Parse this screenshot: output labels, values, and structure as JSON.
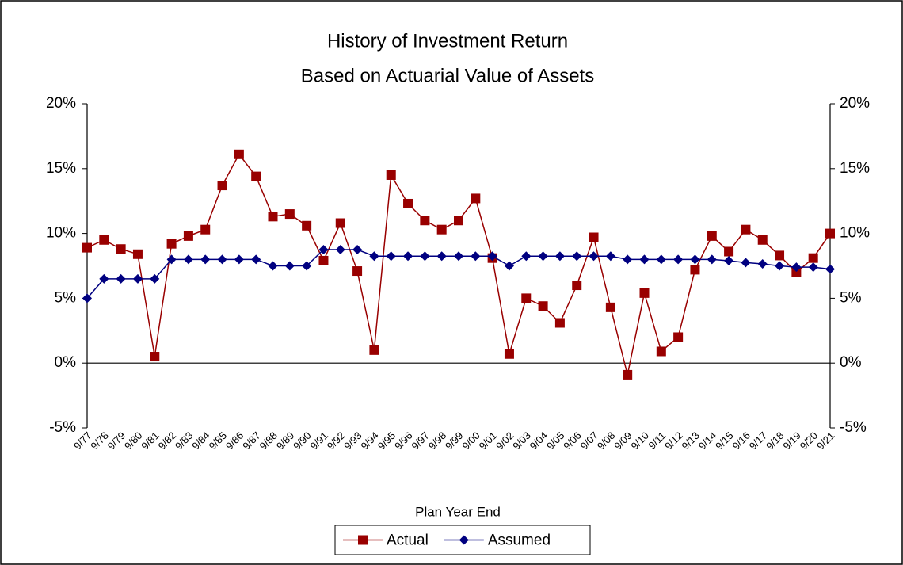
{
  "chart_data": {
    "type": "line",
    "title": "History of Investment Return",
    "subtitle": "Based on Actuarial Value of Assets",
    "x_label": "Plan Year End",
    "categories": [
      "9/77",
      "9/78",
      "9/79",
      "9/80",
      "9/81",
      "9/82",
      "9/83",
      "9/84",
      "9/85",
      "9/86",
      "9/87",
      "9/88",
      "9/89",
      "9/90",
      "9/91",
      "9/92",
      "9/93",
      "9/94",
      "9/95",
      "9/96",
      "9/97",
      "9/98",
      "9/99",
      "9/00",
      "9/01",
      "9/02",
      "9/03",
      "9/04",
      "9/05",
      "9/06",
      "9/07",
      "9/08",
      "9/09",
      "9/10",
      "9/11",
      "9/12",
      "9/13",
      "9/14",
      "9/15",
      "9/16",
      "9/17",
      "9/18",
      "9/19",
      "9/20",
      "9/21"
    ],
    "series": [
      {
        "name": "Actual",
        "color": "#990000",
        "marker": "square",
        "values": [
          8.9,
          9.5,
          8.8,
          8.4,
          0.5,
          9.2,
          9.8,
          10.3,
          13.7,
          16.1,
          14.4,
          11.3,
          11.5,
          10.6,
          7.9,
          10.8,
          7.1,
          1.0,
          14.5,
          12.3,
          11.0,
          10.3,
          11.0,
          12.7,
          8.1,
          0.7,
          5.0,
          4.4,
          3.1,
          6.0,
          9.7,
          4.3,
          -0.9,
          5.4,
          0.9,
          2.0,
          7.2,
          9.8,
          8.6,
          10.3,
          9.5,
          8.3,
          7.0,
          8.1,
          10.0
        ]
      },
      {
        "name": "Assumed",
        "color": "#000080",
        "marker": "diamond",
        "values": [
          5.0,
          6.5,
          6.5,
          6.5,
          6.5,
          8.0,
          8.0,
          8.0,
          8.0,
          8.0,
          8.0,
          7.5,
          7.5,
          7.5,
          8.75,
          8.75,
          8.75,
          8.25,
          8.25,
          8.25,
          8.25,
          8.25,
          8.25,
          8.25,
          8.25,
          7.5,
          8.25,
          8.25,
          8.25,
          8.25,
          8.25,
          8.25,
          8.0,
          8.0,
          8.0,
          8.0,
          8.0,
          8.0,
          7.9,
          7.75,
          7.65,
          7.5,
          7.4,
          7.4,
          7.25
        ]
      }
    ],
    "ylim": [
      -5,
      20
    ],
    "yticks": [
      {
        "value": -5,
        "label": "-5%"
      },
      {
        "value": 0,
        "label": "0%"
      },
      {
        "value": 5,
        "label": "5%"
      },
      {
        "value": 10,
        "label": "10%"
      },
      {
        "value": 15,
        "label": "15%"
      },
      {
        "value": 20,
        "label": "20%"
      }
    ],
    "y2lim": [
      -5,
      20
    ],
    "y2ticks": [
      {
        "value": -5,
        "label": "-5%"
      },
      {
        "value": 0,
        "label": "0%"
      },
      {
        "value": 5,
        "label": "5%"
      },
      {
        "value": 10,
        "label": "10%"
      },
      {
        "value": 15,
        "label": "15%"
      },
      {
        "value": 20,
        "label": "20%"
      }
    ],
    "grid": false,
    "legend": "bottom"
  }
}
